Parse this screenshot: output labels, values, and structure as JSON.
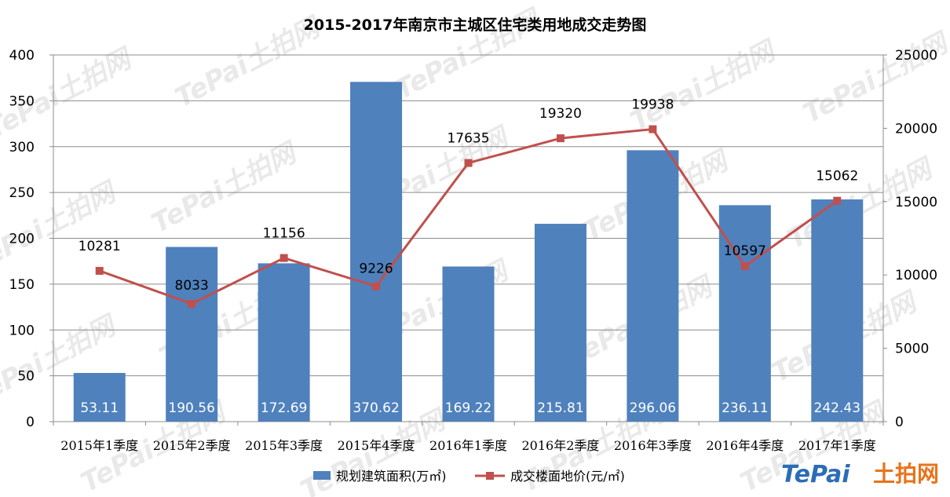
{
  "chart_data": {
    "type": "bar",
    "title": "2015-2017年南京市主城区住宅类用地成交走势图",
    "categories": [
      "2015年1季度",
      "2015年2季度",
      "2015年3季度",
      "2015年4季度",
      "2016年1季度",
      "2016年2季度",
      "2016年3季度",
      "2016年4季度",
      "2017年1季度"
    ],
    "series": [
      {
        "name": "规划建筑面积(万㎡)",
        "type": "bar",
        "axis": "left",
        "color": "#4f81bd",
        "values": [
          53.11,
          190.56,
          172.69,
          370.62,
          169.22,
          215.81,
          296.06,
          236.11,
          242.43
        ]
      },
      {
        "name": "成交楼面地价(元/㎡)",
        "type": "line",
        "axis": "right",
        "color": "#c0504d",
        "values": [
          10281,
          8033,
          11156,
          9226,
          17635,
          19320,
          19938,
          10597,
          15062
        ]
      }
    ],
    "y_left": {
      "min": 0,
      "max": 400,
      "step": 50,
      "ticks": [
        "0",
        "50",
        "100",
        "150",
        "200",
        "250",
        "300",
        "350",
        "400"
      ]
    },
    "y_right": {
      "min": 0,
      "max": 25000,
      "step": 5000,
      "ticks": [
        "0",
        "5000",
        "10000",
        "15000",
        "20000",
        "25000"
      ]
    },
    "grid": true,
    "legend_position": "bottom"
  },
  "watermark": {
    "logo_text": "TePai",
    "logo_cn": "土拍网"
  }
}
